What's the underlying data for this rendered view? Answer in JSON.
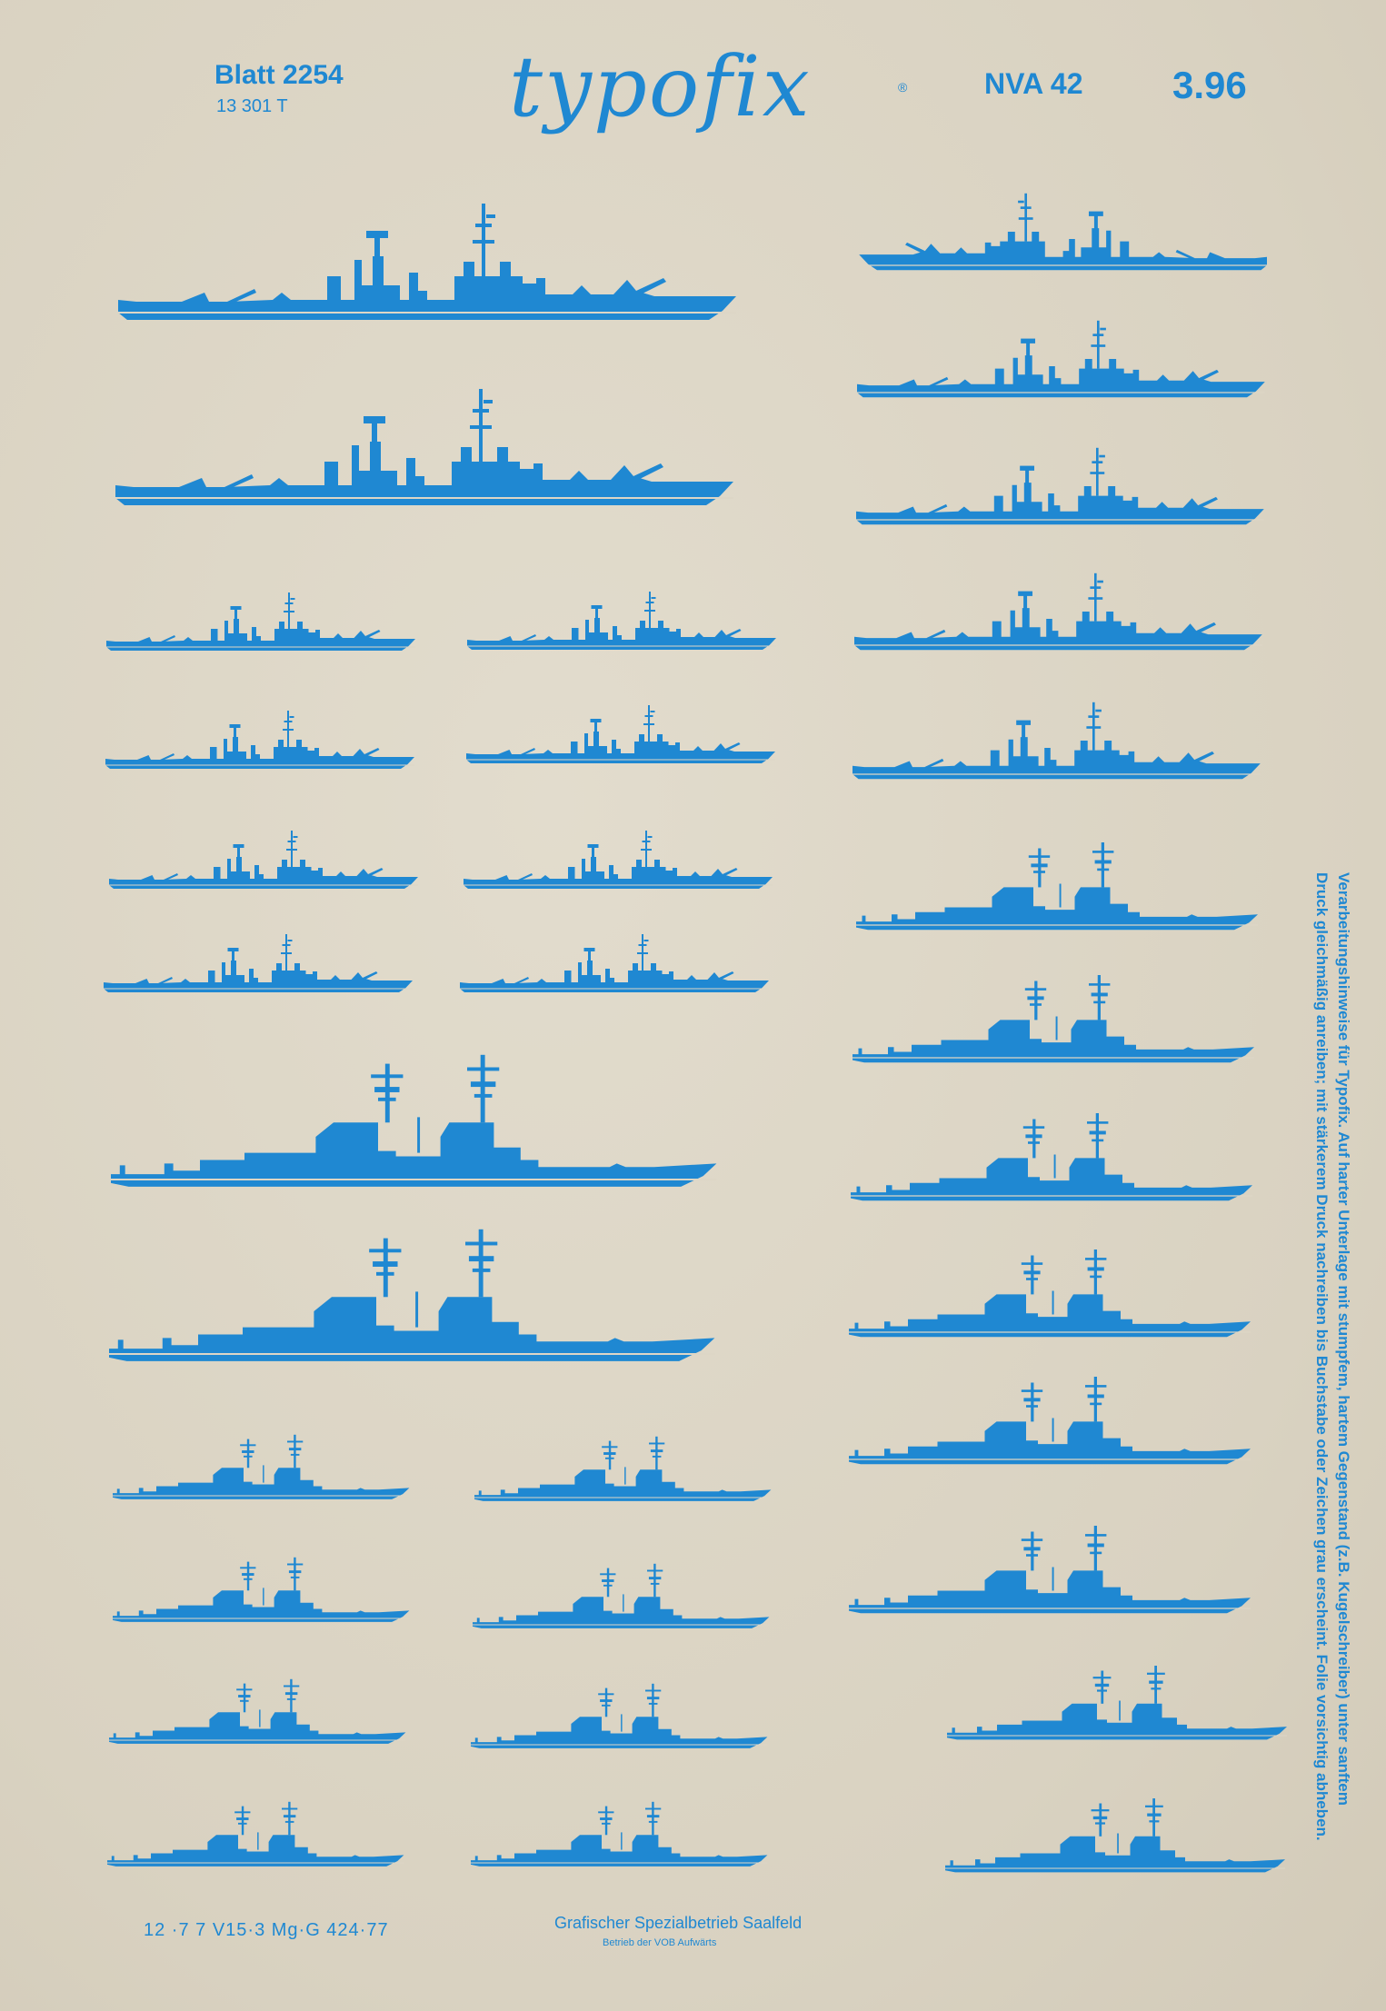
{
  "header": {
    "sheet_label": "Blatt 2254",
    "sheet_code": "13 301  T",
    "brand": "typofix",
    "brand_mark": "®",
    "series": "NVA 42",
    "price": "3.96"
  },
  "side_note": {
    "lines": [
      "Verarbeitungshinweise für Typofix.  Auf harter Unterlage mit stumpfem, hartem Gegenstand (z.B. Kugelschreiber) unter sanftem",
      "Druck gleichmäßig anreiben; mit stärkerem Druck nachreiben bis Buchstabe oder Zeichen grau erscheint. Folie vorsichtig abheben."
    ]
  },
  "footer": {
    "print_codes": "12 ·7 7    V15·3  Mg·G  424·77",
    "printer": "Grafischer Spezialbetrieb Saalfeld",
    "printer_sub": "Betrieb der VOB Aufwärts"
  },
  "colors": {
    "ink": "#1f88d2",
    "paper": "#ddd6c6"
  },
  "ship_icon": "warship-silhouette"
}
